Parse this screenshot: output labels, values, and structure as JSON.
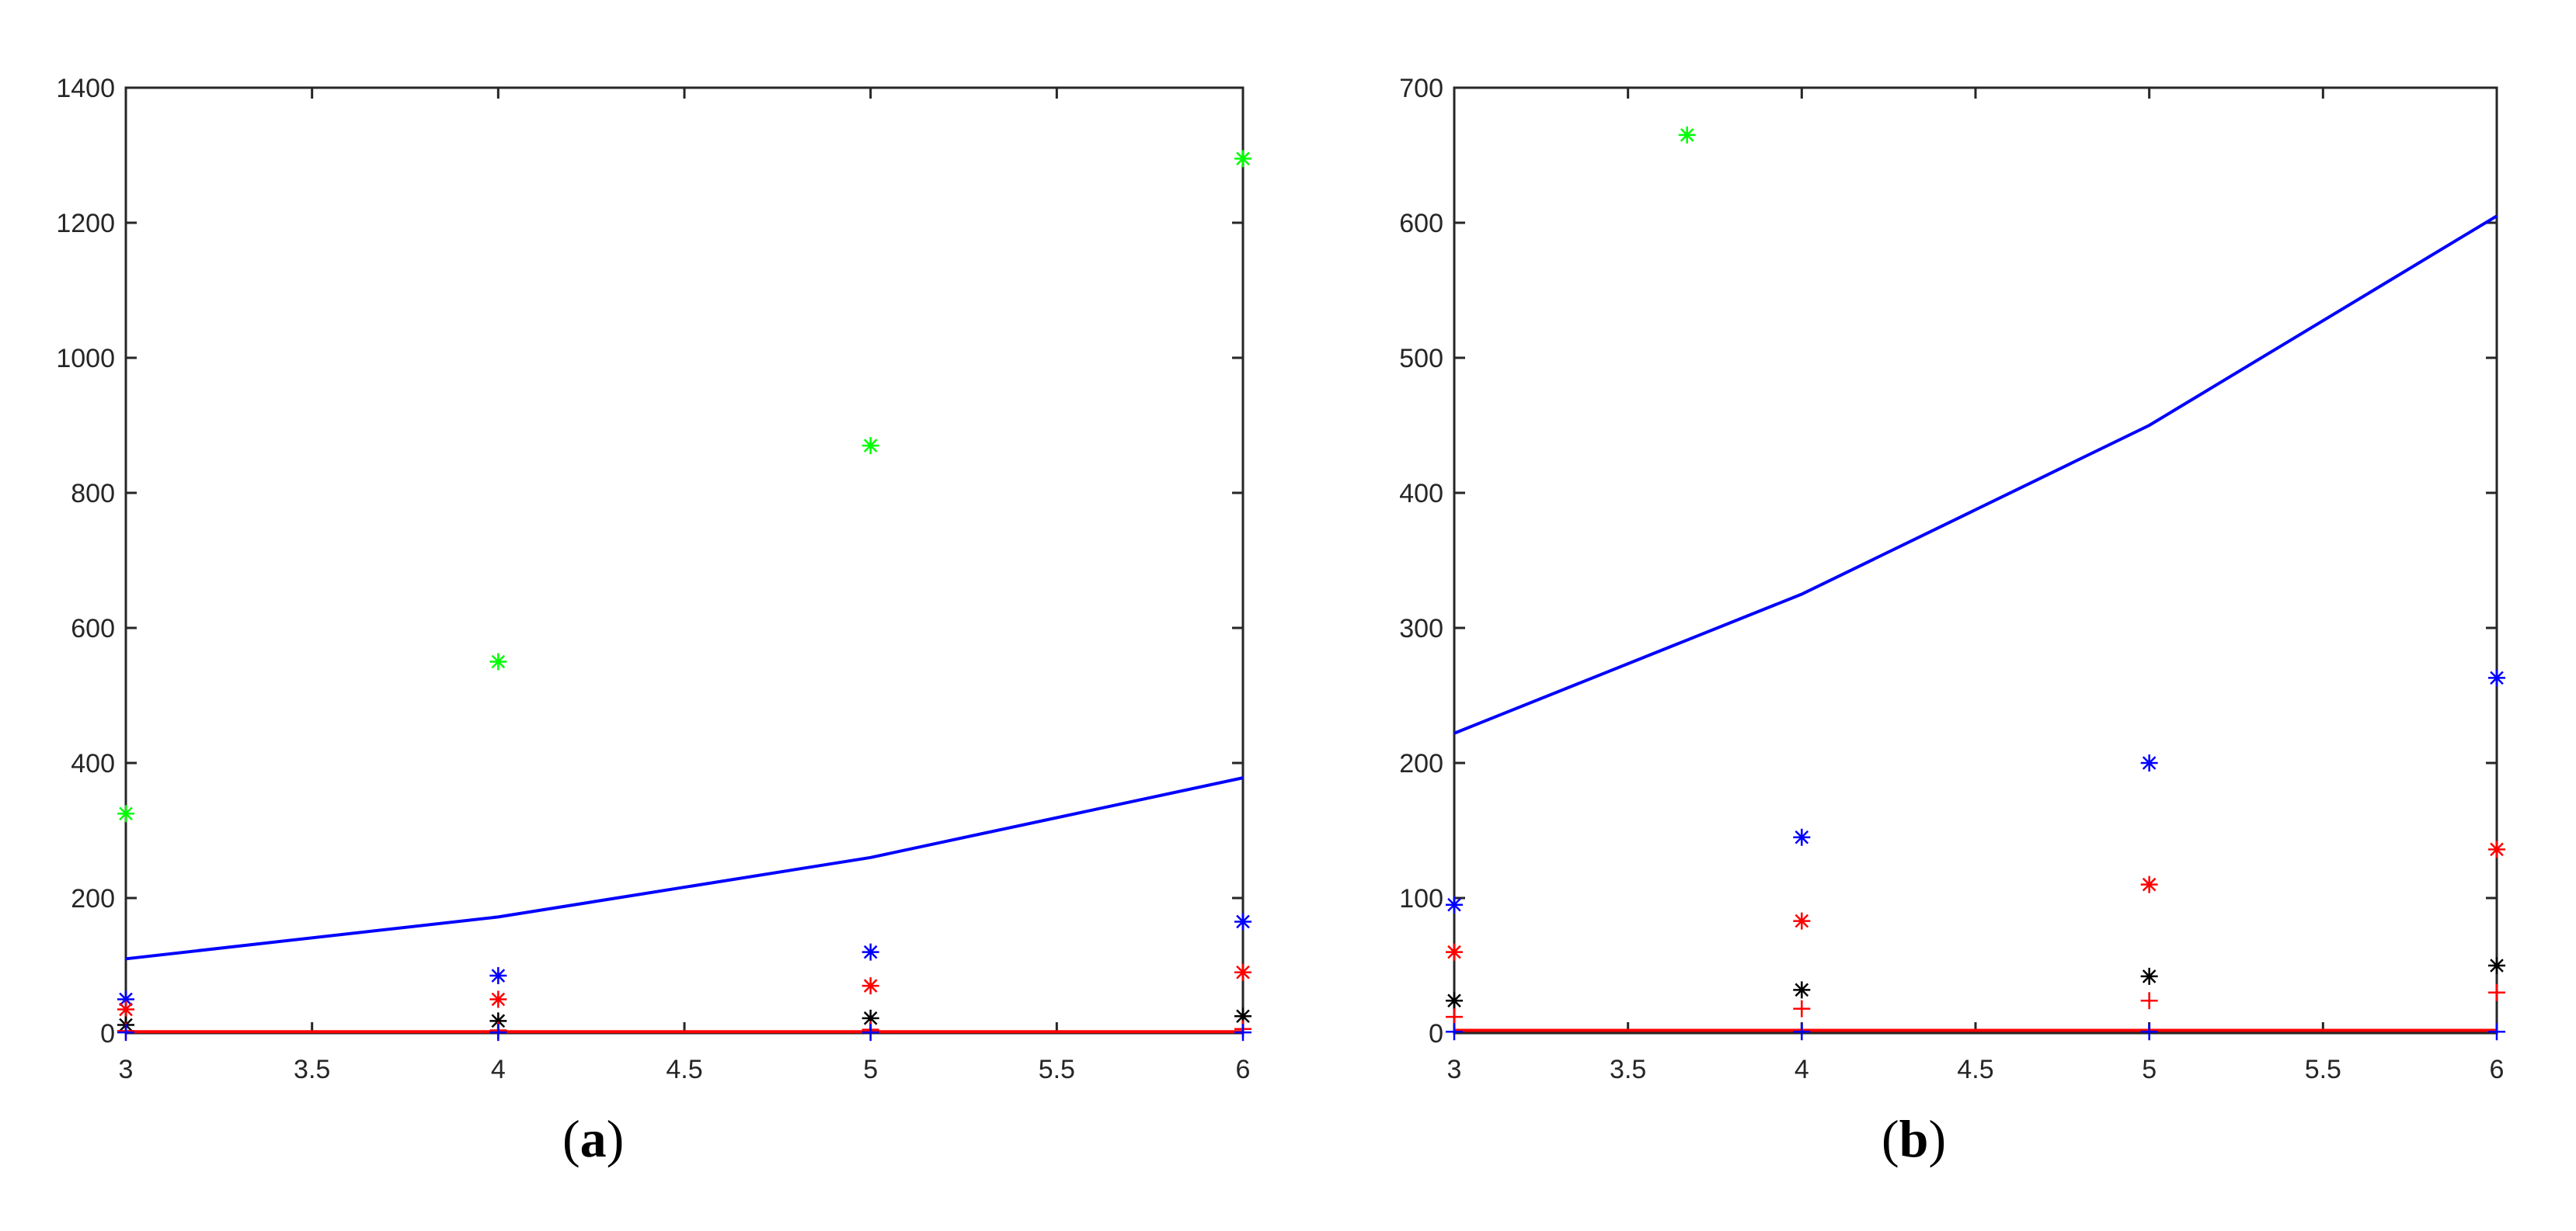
{
  "chart_data": [
    {
      "type": "scatter",
      "panel_label_open": "(",
      "panel_label_letter": "a",
      "panel_label_close": ")",
      "xlim": [
        3,
        6
      ],
      "ylim": [
        0,
        1400
      ],
      "xticks": [
        3,
        3.5,
        4,
        4.5,
        5,
        5.5,
        6
      ],
      "yticks": [
        0,
        200,
        400,
        600,
        800,
        1000,
        1200,
        1400
      ],
      "grid": false,
      "lines": [
        {
          "color": "#0000ff",
          "x": [
            3,
            4,
            5,
            6
          ],
          "y": [
            110,
            172,
            260,
            378
          ]
        },
        {
          "color": "#ff0000",
          "x": [
            3,
            4,
            5,
            6
          ],
          "y": [
            2,
            2,
            2,
            2
          ]
        }
      ],
      "markers": [
        {
          "marker": "star",
          "color": "#00ff00",
          "x": [
            3,
            4,
            5,
            6
          ],
          "y": [
            325,
            550,
            870,
            1295
          ]
        },
        {
          "marker": "star",
          "color": "#0000ff",
          "x": [
            3,
            4,
            5,
            6
          ],
          "y": [
            50,
            85,
            120,
            165
          ]
        },
        {
          "marker": "star",
          "color": "#ff0000",
          "x": [
            3,
            4,
            5,
            6
          ],
          "y": [
            35,
            50,
            70,
            90
          ]
        },
        {
          "marker": "star",
          "color": "#000000",
          "x": [
            3,
            4,
            5,
            6
          ],
          "y": [
            12,
            18,
            22,
            25
          ]
        },
        {
          "marker": "plus",
          "color": "#ff0000",
          "x": [
            3,
            4,
            5,
            6
          ],
          "y": [
            3,
            4,
            5,
            6
          ]
        },
        {
          "marker": "plus",
          "color": "#0000ff",
          "x": [
            3,
            4,
            5,
            6
          ],
          "y": [
            1,
            1,
            1,
            1
          ]
        }
      ]
    },
    {
      "type": "scatter",
      "panel_label_open": "(",
      "panel_label_letter": "b",
      "panel_label_close": ")",
      "xlim": [
        3,
        6
      ],
      "ylim": [
        0,
        700
      ],
      "xticks": [
        3,
        3.5,
        4,
        4.5,
        5,
        5.5,
        6
      ],
      "yticks": [
        0,
        100,
        200,
        300,
        400,
        500,
        600,
        700
      ],
      "grid": false,
      "lines": [
        {
          "color": "#0000ff",
          "x": [
            3,
            4,
            5,
            6
          ],
          "y": [
            222,
            325,
            450,
            605
          ]
        },
        {
          "color": "#ff0000",
          "x": [
            3,
            4,
            5,
            6
          ],
          "y": [
            2,
            2,
            2,
            2
          ]
        }
      ],
      "markers": [
        {
          "marker": "star",
          "color": "#00ff00",
          "x": [
            3.67
          ],
          "y": [
            665
          ]
        },
        {
          "marker": "star",
          "color": "#0000ff",
          "x": [
            3,
            4,
            5,
            6
          ],
          "y": [
            95,
            145,
            200,
            263
          ]
        },
        {
          "marker": "star",
          "color": "#ff0000",
          "x": [
            3,
            4,
            5,
            6
          ],
          "y": [
            60,
            83,
            110,
            136
          ]
        },
        {
          "marker": "star",
          "color": "#000000",
          "x": [
            3,
            4,
            5,
            6
          ],
          "y": [
            24,
            32,
            42,
            50
          ]
        },
        {
          "marker": "plus",
          "color": "#ff0000",
          "x": [
            3,
            4,
            5,
            6
          ],
          "y": [
            12,
            18,
            24,
            30
          ]
        },
        {
          "marker": "plus",
          "color": "#0000ff",
          "x": [
            3,
            4,
            5,
            6
          ],
          "y": [
            1,
            1,
            1,
            1
          ]
        }
      ]
    }
  ]
}
